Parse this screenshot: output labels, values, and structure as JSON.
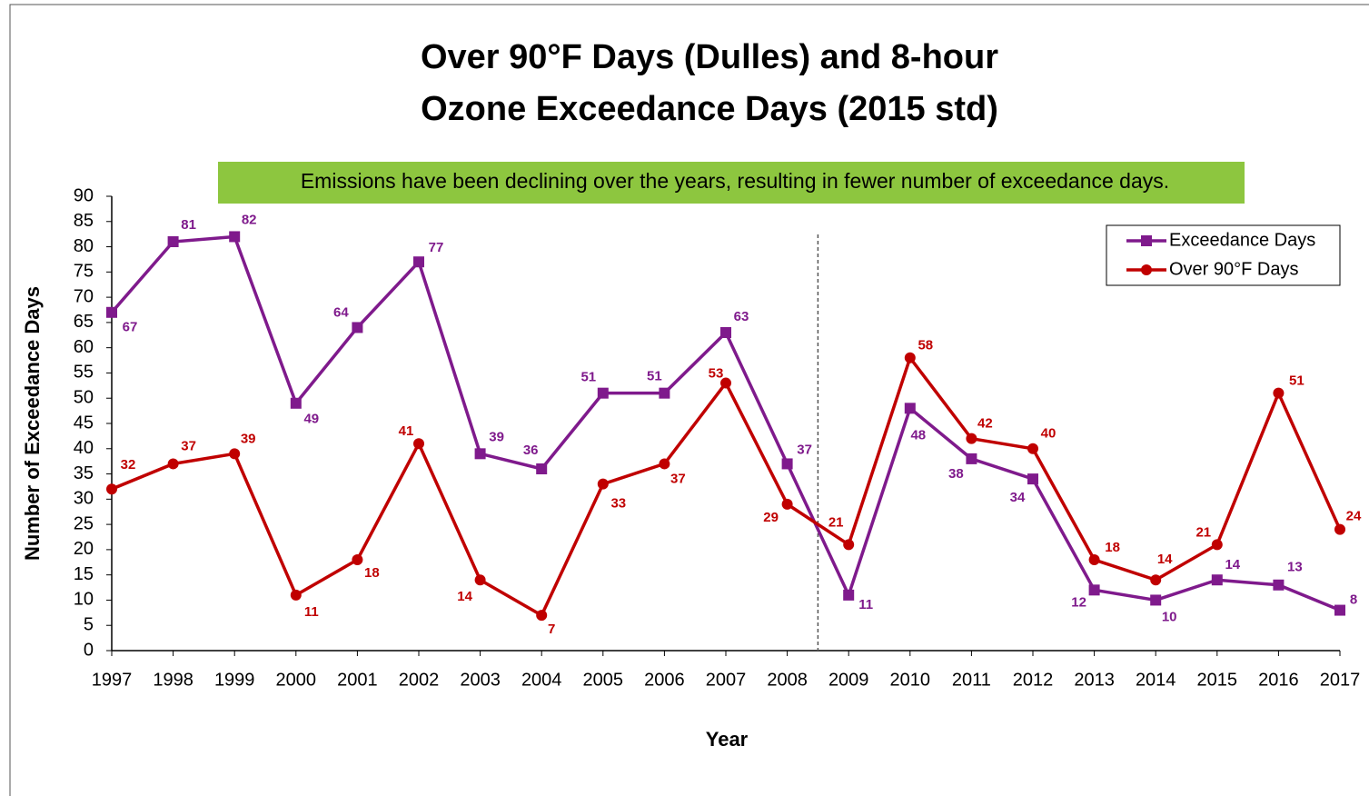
{
  "chart_data": {
    "type": "line",
    "title": [
      "Over 90°F Days (Dulles) and 8-hour",
      "Ozone Exceedance Days (2015 std)"
    ],
    "annotation": "Emissions have been declining over the years, resulting in fewer number of exceedance days.",
    "xlabel": "Year",
    "ylabel": "Number of Exceedance Days",
    "categories": [
      "1997",
      "1998",
      "1999",
      "2000",
      "2001",
      "2002",
      "2003",
      "2004",
      "2005",
      "2006",
      "2007",
      "2008",
      "2009",
      "2010",
      "2011",
      "2012",
      "2013",
      "2014",
      "2015",
      "2016",
      "2017"
    ],
    "series": [
      {
        "name": "Exceedance Days",
        "color": "#7f1a8c",
        "marker": "square",
        "values": [
          67,
          81,
          82,
          49,
          64,
          77,
          39,
          36,
          51,
          51,
          63,
          37,
          11,
          48,
          38,
          34,
          12,
          10,
          14,
          13,
          8
        ]
      },
      {
        "name": "Over 90°F Days",
        "color": "#c00000",
        "marker": "circle",
        "values": [
          32,
          37,
          39,
          11,
          18,
          41,
          14,
          7,
          33,
          37,
          53,
          29,
          21,
          58,
          42,
          40,
          18,
          14,
          21,
          51,
          24
        ]
      }
    ],
    "ylim": [
      0,
      90
    ],
    "yticks": [
      0,
      5,
      10,
      15,
      20,
      25,
      30,
      35,
      40,
      45,
      50,
      55,
      60,
      65,
      70,
      75,
      80,
      85,
      90
    ],
    "grid": false,
    "legend": "upper right"
  }
}
